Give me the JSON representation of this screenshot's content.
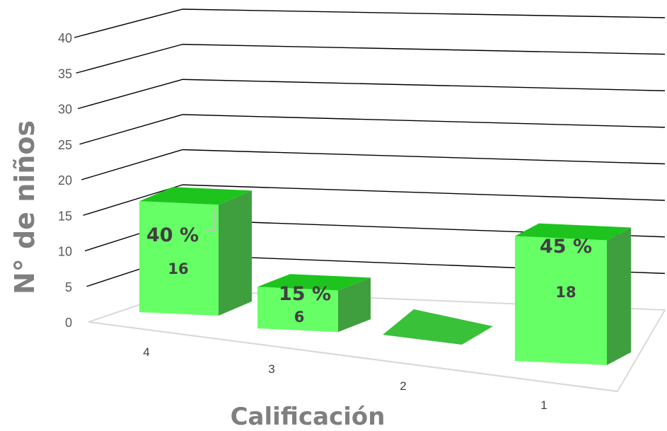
{
  "chart_data": {
    "type": "bar",
    "style": "3d-column",
    "categories": [
      "4",
      "3",
      "2",
      "1"
    ],
    "values": [
      16,
      6,
      0,
      18
    ],
    "percent_labels": [
      "40 %",
      "15 %",
      "",
      "45 %"
    ],
    "value_labels": [
      "16",
      "6",
      "",
      "18"
    ],
    "xlabel": "Calificación",
    "ylabel": "N° de niños",
    "ylim": [
      0,
      40
    ],
    "yticks": [
      0,
      5,
      10,
      15,
      20,
      25,
      30,
      35,
      40
    ],
    "grid": true,
    "legend": "none",
    "colors": {
      "front": "#66ff66",
      "top": "#1ec41e",
      "side": "#3f9f3f",
      "floor_bar": "#39c139",
      "grid": "#000000",
      "floor": "#d9d9d9"
    }
  }
}
